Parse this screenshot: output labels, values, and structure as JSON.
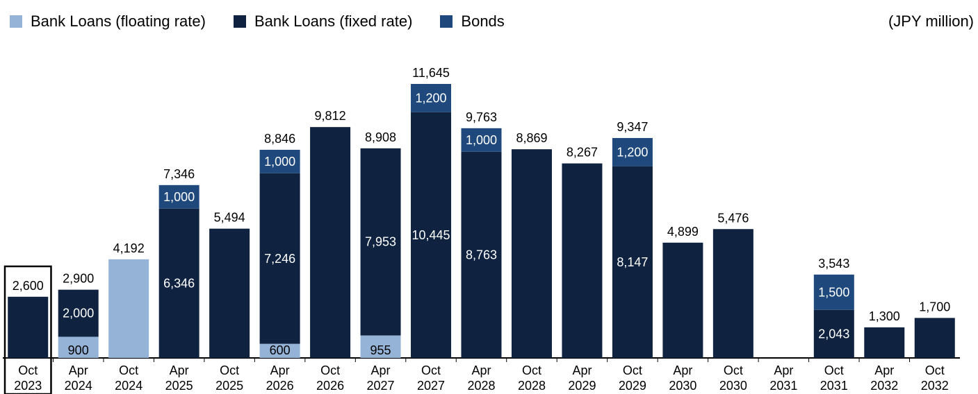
{
  "unit_label": "(JPY million)",
  "colors": {
    "floating": "#95b3d7",
    "fixed": "#0f2340",
    "bonds": "#1f497d",
    "label_dark": "#000000",
    "label_light": "#ffffff"
  },
  "chart_data": {
    "type": "bar",
    "stacked": true,
    "title": "",
    "xlabel": "",
    "ylabel": "",
    "ylim": [
      0,
      12500
    ],
    "grid": false,
    "legend_position": "top-left",
    "categories": [
      [
        "Oct",
        "2023"
      ],
      [
        "Apr",
        "2024"
      ],
      [
        "Oct",
        "2024"
      ],
      [
        "Apr",
        "2025"
      ],
      [
        "Oct",
        "2025"
      ],
      [
        "Apr",
        "2026"
      ],
      [
        "Oct",
        "2026"
      ],
      [
        "Apr",
        "2027"
      ],
      [
        "Oct",
        "2027"
      ],
      [
        "Apr",
        "2028"
      ],
      [
        "Oct",
        "2028"
      ],
      [
        "Apr",
        "2029"
      ],
      [
        "Oct",
        "2029"
      ],
      [
        "Apr",
        "2030"
      ],
      [
        "Oct",
        "2030"
      ],
      [
        "Apr",
        "2031"
      ],
      [
        "Oct",
        "2031"
      ],
      [
        "Apr",
        "2032"
      ],
      [
        "Oct",
        "2032"
      ]
    ],
    "highlighted_category": 0,
    "series": [
      {
        "name": "Bank Loans (floating rate)",
        "color_key": "floating",
        "values": [
          0,
          900,
          4192,
          0,
          0,
          600,
          0,
          955,
          0,
          0,
          0,
          0,
          0,
          0,
          0,
          0,
          0,
          0,
          0
        ],
        "labels": [
          "",
          "900",
          "",
          "",
          "",
          "600",
          "",
          "955",
          "",
          "",
          "",
          "",
          "",
          "",
          "",
          "",
          "",
          "",
          ""
        ]
      },
      {
        "name": "Bank Loans (fixed rate)",
        "color_key": "fixed",
        "values": [
          2600,
          2000,
          0,
          6346,
          5494,
          7246,
          9812,
          7953,
          10445,
          8763,
          8869,
          8267,
          8147,
          4899,
          5476,
          0,
          2043,
          1300,
          1700
        ],
        "labels": [
          "",
          "2,000",
          "",
          "6,346",
          "",
          "7,246",
          "",
          "7,953",
          "10,445",
          "8,763",
          "",
          "",
          "8,147",
          "",
          "",
          "",
          "2,043",
          "",
          ""
        ]
      },
      {
        "name": "Bonds",
        "color_key": "bonds",
        "values": [
          0,
          0,
          0,
          1000,
          0,
          1000,
          0,
          0,
          1200,
          1000,
          0,
          0,
          1200,
          0,
          0,
          0,
          1500,
          0,
          0
        ],
        "labels": [
          "",
          "",
          "",
          "1,000",
          "",
          "1,000",
          "",
          "",
          "1,200",
          "1,000",
          "",
          "",
          "1,200",
          "",
          "",
          "",
          "1,500",
          "",
          ""
        ]
      }
    ],
    "totals": [
      "2,600",
      "2,900",
      "4,192",
      "7,346",
      "5,494",
      "8,846",
      "9,812",
      "8,908",
      "11,645",
      "9,763",
      "8,869",
      "8,267",
      "9,347",
      "4,899",
      "5,476",
      "",
      "3,543",
      "1,300",
      "1,700"
    ]
  }
}
